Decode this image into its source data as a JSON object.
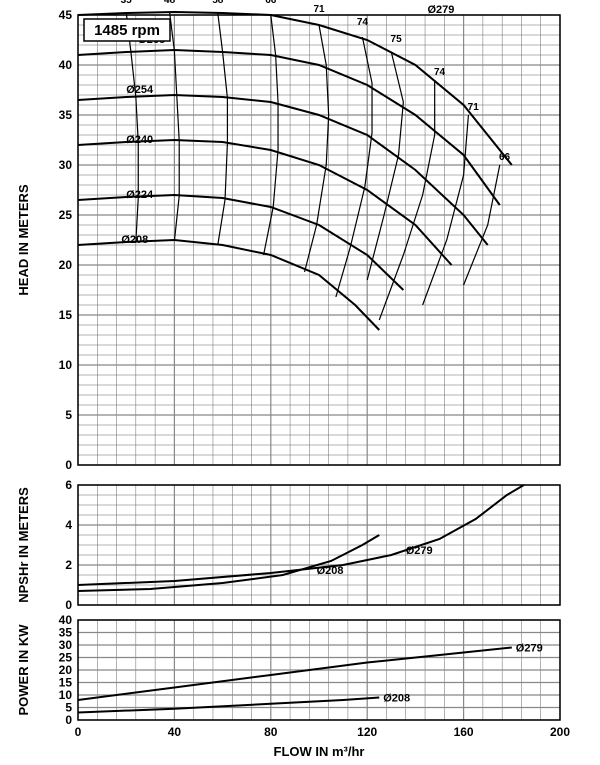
{
  "rpm_label": "1485 rpm",
  "background_color": "#ffffff",
  "line_color": "#000000",
  "grid_minor_color": "#666666",
  "grid_major_color": "#888888",
  "grid_minor_width": 0.5,
  "grid_major_width": 1.2,
  "curve_width": 2,
  "top_panel": {
    "y_label": "HEAD IN METERS",
    "x_range": [
      0,
      200
    ],
    "y_range": [
      0,
      45
    ],
    "x_ticks": [
      0,
      40,
      80,
      120,
      160,
      200
    ],
    "y_ticks": [
      0,
      5,
      10,
      15,
      20,
      25,
      30,
      35,
      40,
      45
    ],
    "x_minor_count": 5,
    "y_minor_step": 1,
    "impeller_curves": {
      "279": {
        "label": "Ø279",
        "label_x": 145,
        "label_y": 45,
        "points": [
          [
            0,
            45
          ],
          [
            20,
            45.2
          ],
          [
            40,
            45.3
          ],
          [
            60,
            45.2
          ],
          [
            80,
            45
          ],
          [
            100,
            44
          ],
          [
            120,
            42.5
          ],
          [
            140,
            40
          ],
          [
            160,
            36
          ],
          [
            180,
            30
          ]
        ]
      },
      "268": {
        "label": "Ø268",
        "label_x": 25,
        "label_y": 42,
        "points": [
          [
            0,
            41
          ],
          [
            20,
            41.3
          ],
          [
            40,
            41.5
          ],
          [
            60,
            41.3
          ],
          [
            80,
            41
          ],
          [
            100,
            40
          ],
          [
            120,
            38
          ],
          [
            140,
            35
          ],
          [
            160,
            31
          ],
          [
            175,
            26
          ]
        ]
      },
      "254": {
        "label": "Ø254",
        "label_x": 20,
        "label_y": 37,
        "points": [
          [
            0,
            36.5
          ],
          [
            20,
            36.8
          ],
          [
            40,
            37
          ],
          [
            60,
            36.8
          ],
          [
            80,
            36.3
          ],
          [
            100,
            35
          ],
          [
            120,
            33
          ],
          [
            140,
            29.5
          ],
          [
            160,
            25
          ],
          [
            170,
            22
          ]
        ]
      },
      "240": {
        "label": "Ø240",
        "label_x": 20,
        "label_y": 32,
        "points": [
          [
            0,
            32
          ],
          [
            20,
            32.3
          ],
          [
            40,
            32.5
          ],
          [
            60,
            32.3
          ],
          [
            80,
            31.5
          ],
          [
            100,
            30
          ],
          [
            120,
            27.5
          ],
          [
            140,
            24
          ],
          [
            155,
            20
          ]
        ]
      },
      "224": {
        "label": "Ø224",
        "label_x": 20,
        "label_y": 26.5,
        "points": [
          [
            0,
            26.5
          ],
          [
            20,
            26.8
          ],
          [
            40,
            27
          ],
          [
            60,
            26.7
          ],
          [
            80,
            25.8
          ],
          [
            100,
            24
          ],
          [
            120,
            21
          ],
          [
            135,
            17.5
          ]
        ]
      },
      "208": {
        "label": "Ø208",
        "label_x": 18,
        "label_y": 22,
        "points": [
          [
            0,
            22
          ],
          [
            20,
            22.3
          ],
          [
            40,
            22.5
          ],
          [
            60,
            22
          ],
          [
            80,
            21
          ],
          [
            100,
            19
          ],
          [
            115,
            16
          ],
          [
            125,
            13.5
          ]
        ]
      }
    },
    "efficiency_curves": {
      "35": {
        "label": "35",
        "points": [
          [
            20,
            45.3
          ],
          [
            22,
            41.2
          ],
          [
            24,
            36.8
          ],
          [
            25,
            32.3
          ],
          [
            25,
            26.7
          ],
          [
            24,
            22.3
          ]
        ]
      },
      "48": {
        "label": "48",
        "points": [
          [
            38,
            45.3
          ],
          [
            40,
            41.4
          ],
          [
            41,
            36.9
          ],
          [
            42,
            32.4
          ],
          [
            42,
            26.9
          ],
          [
            40,
            22.4
          ]
        ]
      },
      "58": {
        "label": "58",
        "points": [
          [
            58,
            45.2
          ],
          [
            60,
            41.3
          ],
          [
            62,
            36.7
          ],
          [
            62,
            32.2
          ],
          [
            61,
            26.5
          ],
          [
            58,
            22
          ]
        ]
      },
      "66": {
        "label": "66",
        "points": [
          [
            80,
            45
          ],
          [
            82,
            41
          ],
          [
            83,
            36.3
          ],
          [
            83,
            31.5
          ],
          [
            81,
            25.8
          ],
          [
            77,
            21
          ]
        ]
      },
      "71": {
        "label": "71",
        "points": [
          [
            100,
            44
          ],
          [
            103,
            40
          ],
          [
            104,
            35
          ],
          [
            103,
            30
          ],
          [
            99,
            24
          ],
          [
            94,
            19.3
          ]
        ]
      },
      "74": {
        "label": "74",
        "points": [
          [
            118,
            42.8
          ],
          [
            122,
            38.2
          ],
          [
            122,
            33.2
          ],
          [
            119,
            27.8
          ],
          [
            113,
            21.8
          ],
          [
            107,
            16.8
          ]
        ]
      },
      "75_peak": {
        "label": "75",
        "points": [
          [
            130,
            41.3
          ],
          [
            135,
            36.3
          ],
          [
            133,
            31
          ],
          [
            127,
            25
          ],
          [
            120,
            18.5
          ]
        ]
      },
      "74_right": {
        "label": "74",
        "points": [
          [
            148,
            38.5
          ],
          [
            148,
            33
          ],
          [
            143,
            27
          ],
          [
            135,
            21
          ],
          [
            125,
            14.5
          ]
        ]
      },
      "71_right": {
        "label": "71",
        "points": [
          [
            162,
            35
          ],
          [
            160,
            29
          ],
          [
            153,
            22.5
          ],
          [
            143,
            16
          ]
        ]
      },
      "66_right": {
        "label": "66",
        "points": [
          [
            175,
            30
          ],
          [
            170,
            24
          ],
          [
            160,
            18
          ]
        ]
      }
    },
    "eff_label_positions": {
      "35": [
        20,
        46.2
      ],
      "48": [
        38,
        46.2
      ],
      "58": [
        58,
        46.2
      ],
      "66_l": [
        80,
        46.2
      ],
      "71_l": [
        100,
        45.3
      ],
      "74_l": [
        118,
        44
      ],
      "75": [
        132,
        42.3
      ],
      "74_r": [
        150,
        39
      ],
      "71_r": [
        164,
        35.5
      ],
      "66_r": [
        177,
        30.5
      ]
    }
  },
  "bottom_panel": {
    "y_label": "NPSHr IN METERS",
    "x_range": [
      0,
      200
    ],
    "y_range": [
      0,
      6
    ],
    "y_ticks": [
      0,
      2,
      4,
      6
    ],
    "x_minor_count": 5,
    "y_minor_step": 0.5,
    "npsh_curves": {
      "279": {
        "label": "Ø279",
        "points": [
          [
            0,
            1.0
          ],
          [
            40,
            1.2
          ],
          [
            80,
            1.6
          ],
          [
            110,
            2.0
          ],
          [
            130,
            2.5
          ],
          [
            150,
            3.3
          ],
          [
            165,
            4.3
          ],
          [
            178,
            5.5
          ],
          [
            185,
            6
          ]
        ]
      },
      "208": {
        "label": "Ø208",
        "points": [
          [
            0,
            0.7
          ],
          [
            30,
            0.8
          ],
          [
            60,
            1.1
          ],
          [
            85,
            1.5
          ],
          [
            105,
            2.2
          ],
          [
            118,
            3.0
          ],
          [
            125,
            3.5
          ]
        ]
      }
    },
    "npsh_label_pos": {
      "279": [
        136,
        2.55
      ],
      "208": [
        99,
        1.55
      ]
    }
  },
  "power_panel": {
    "y_label": "POWER IN KW",
    "y_range": [
      0,
      40
    ],
    "y_ticks": [
      0,
      5,
      10,
      15,
      20,
      25,
      30,
      35,
      40
    ],
    "curves": {
      "279": {
        "label": "Ø279",
        "points": [
          [
            0,
            8
          ],
          [
            40,
            13
          ],
          [
            80,
            18
          ],
          [
            120,
            23
          ],
          [
            160,
            27
          ],
          [
            180,
            29
          ]
        ]
      },
      "208": {
        "label": "Ø208",
        "points": [
          [
            0,
            3
          ],
          [
            40,
            4.5
          ],
          [
            80,
            6.5
          ],
          [
            110,
            8
          ],
          [
            125,
            9
          ]
        ]
      }
    }
  },
  "x_axis_label": "FLOW IN m³/hr",
  "page_x_ticks": [
    0,
    40,
    80,
    120,
    160,
    200
  ]
}
